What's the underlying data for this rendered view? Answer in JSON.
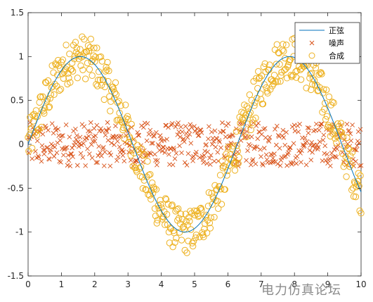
{
  "chart_data": {
    "type": "scatter",
    "title": "",
    "xlabel": "",
    "ylabel": "",
    "xlim": [
      0,
      10
    ],
    "ylim": [
      -1.5,
      1.5
    ],
    "xticks": [
      "0",
      "1",
      "2",
      "3",
      "4",
      "5",
      "6",
      "7",
      "8",
      "9",
      "10"
    ],
    "yticks": [
      "1.5",
      "1",
      "0.5",
      "0",
      "-0.5",
      "-1",
      "-1.5"
    ],
    "grid": false,
    "legend_position": "top-right",
    "series": [
      {
        "name": "正弦",
        "kind": "line",
        "color": "#0072BD",
        "x": [
          0,
          0.5,
          1,
          1.5,
          2,
          2.5,
          3,
          3.5,
          4,
          4.5,
          5,
          5.5,
          6,
          6.5,
          7,
          7.5,
          8,
          8.5,
          9,
          9.5,
          10
        ],
        "y": [
          0,
          0.479,
          0.841,
          0.997,
          0.909,
          0.598,
          0.141,
          -0.351,
          -0.757,
          -0.978,
          -0.959,
          -0.706,
          -0.279,
          0.215,
          0.657,
          0.938,
          0.989,
          0.798,
          0.412,
          -0.075,
          -0.544
        ]
      },
      {
        "name": "噪声",
        "kind": "scatter",
        "marker": "x",
        "color": "#D95319",
        "points": 500,
        "x_range": [
          0,
          10
        ],
        "y_range": [
          -0.25,
          0.25
        ]
      },
      {
        "name": "合成",
        "kind": "scatter",
        "marker": "o",
        "color": "#EDB120",
        "points": 500,
        "x_range": [
          0,
          10
        ],
        "description_y": "正弦 + 噪声"
      }
    ]
  },
  "watermark": "电力仿真论坛"
}
